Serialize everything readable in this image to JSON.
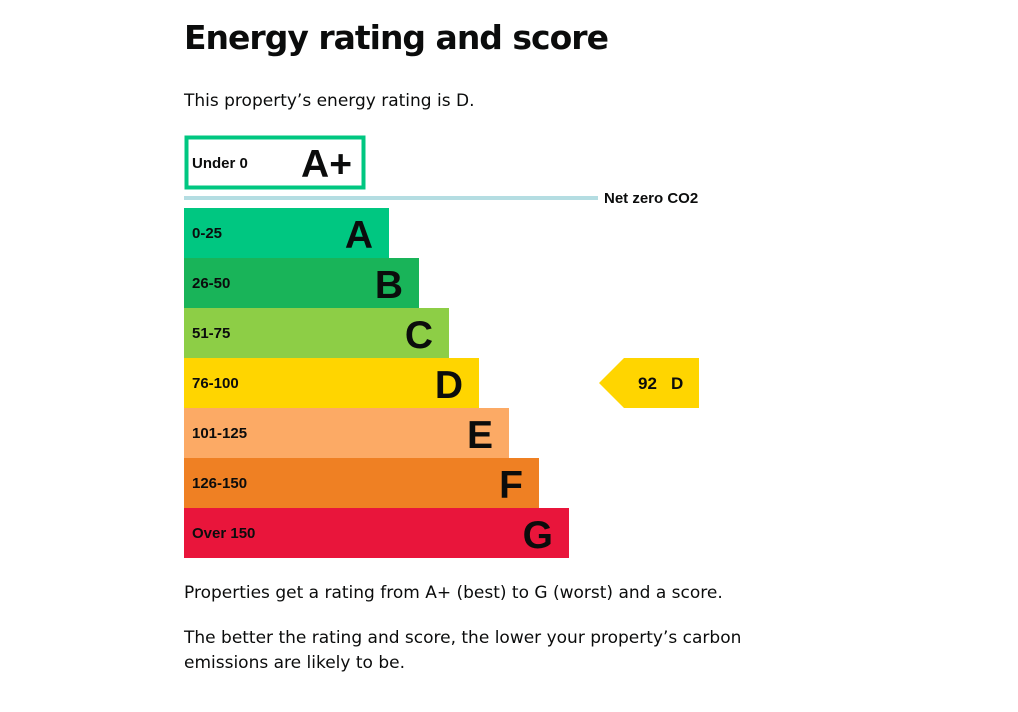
{
  "page": {
    "title": "Energy rating and score",
    "intro_prefix": "This property’s energy rating is ",
    "intro_rating": "D",
    "intro_suffix": "."
  },
  "chart_data": {
    "type": "bar",
    "top_band": {
      "range": "Under 0",
      "letter": "A+",
      "color": "#00c781"
    },
    "net_zero_label": "Net zero CO2",
    "net_zero_line_color": "#b4dde2",
    "bands": [
      {
        "range": "0-25",
        "letter": "A",
        "color": "#00c781"
      },
      {
        "range": "26-50",
        "letter": "B",
        "color": "#19b459"
      },
      {
        "range": "51-75",
        "letter": "C",
        "color": "#8dce46"
      },
      {
        "range": "76-100",
        "letter": "D",
        "color": "#ffd500"
      },
      {
        "range": "101-125",
        "letter": "E",
        "color": "#fcaa65"
      },
      {
        "range": "126-150",
        "letter": "F",
        "color": "#ef8023"
      },
      {
        "range": "Over 150",
        "letter": "G",
        "color": "#e9153b"
      }
    ],
    "current": {
      "score": "92",
      "letter": "D",
      "band_index": 3,
      "color": "#ffd500"
    }
  },
  "explanation": {
    "paragraph1": "Properties get a rating from A+ (best) to G (worst) and a score.",
    "paragraph2": "The better the rating and score, the lower your property’s carbon emissions are likely to be."
  }
}
